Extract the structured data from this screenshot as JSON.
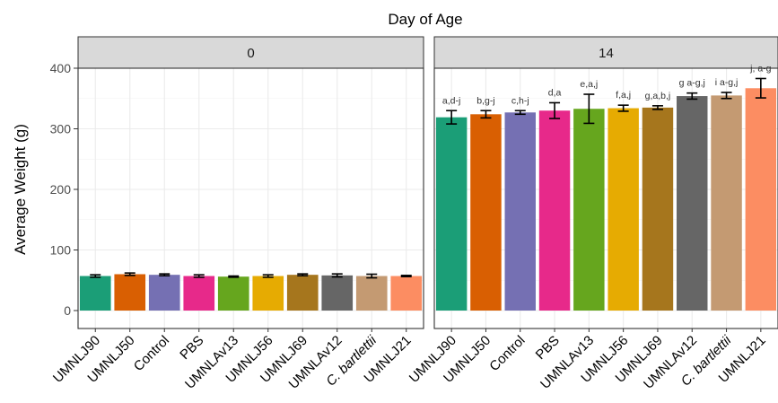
{
  "chart_data": {
    "type": "bar",
    "title": "Day of Age",
    "ylabel": "Average Weight (g)",
    "xlabel": "",
    "ylim": [
      0,
      400
    ],
    "yticks": [
      0,
      100,
      200,
      300,
      400
    ],
    "grid": true,
    "legend": "none",
    "panels": [
      {
        "label": "0",
        "categories": [
          "UMNLJ90",
          "UMNLJ50",
          "Control",
          "PBS",
          "UMNLAv13",
          "UMNLJ56",
          "UMNLJ69",
          "UMNLAv12",
          "C. bartlettii",
          "UMNLJ21"
        ],
        "values": [
          57,
          60,
          59,
          57,
          56,
          57,
          59,
          58,
          57,
          57
        ],
        "errors": [
          2,
          2,
          1.5,
          2,
          1,
          2,
          1.5,
          2.5,
          3,
          1
        ],
        "annotations": [
          "",
          "",
          "",
          "",
          "",
          "",
          "",
          "",
          "",
          ""
        ]
      },
      {
        "label": "14",
        "categories": [
          "UMNLJ90",
          "UMNLJ50",
          "Control",
          "PBS",
          "UMNLAv13",
          "UMNLJ56",
          "UMNLJ69",
          "UMNLAv12",
          "C. bartlettii",
          "UMNLJ21"
        ],
        "values": [
          319,
          324,
          327,
          330,
          333,
          334,
          335,
          354,
          355,
          367
        ],
        "errors": [
          11,
          6,
          3,
          13,
          24,
          5,
          3,
          5,
          5,
          16
        ],
        "annotations": [
          "a,d-j",
          "b,g-j",
          "c,h-j",
          "d,a",
          "e,a,j",
          "f,a,j",
          "g,a,b,j",
          "g a-g,j",
          "i a-g,j",
          "j, a-g"
        ]
      }
    ],
    "colors": [
      "#1b9e77",
      "#d95f02",
      "#7570b3",
      "#e7298a",
      "#66a61e",
      "#e6ab02",
      "#a6761d",
      "#666666",
      "#c49a72",
      "#fc8d62"
    ],
    "italic_categories": [
      "C. bartlettii"
    ]
  }
}
